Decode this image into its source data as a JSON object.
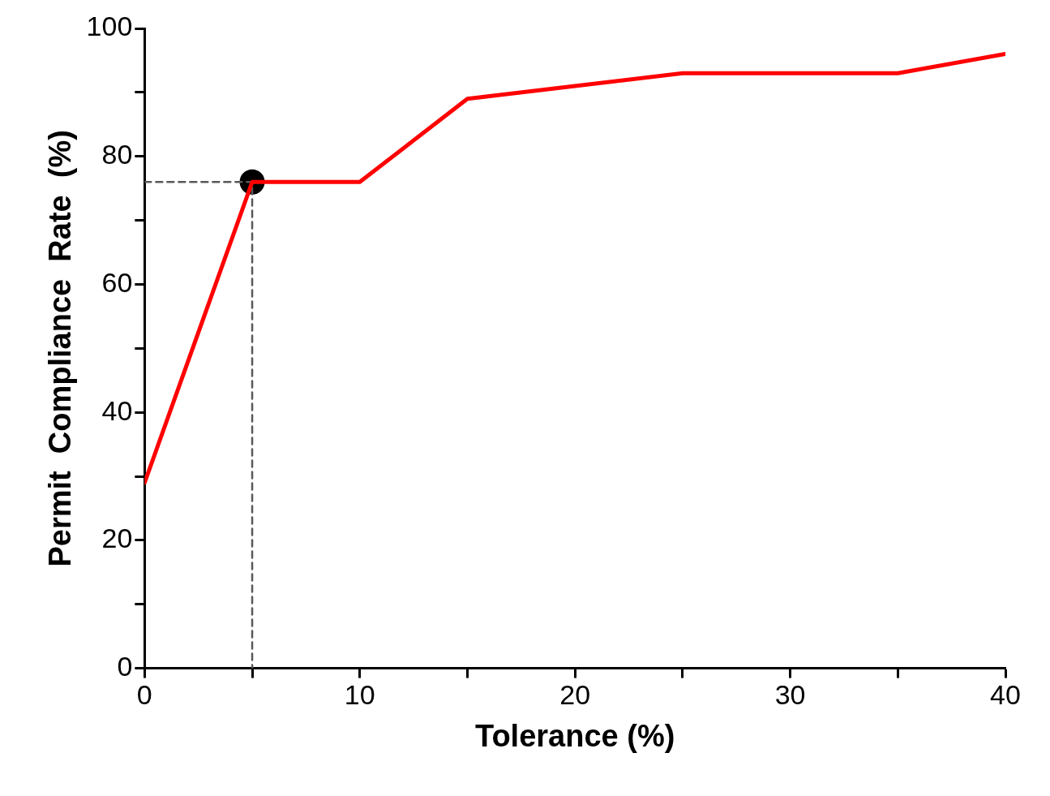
{
  "chart_data": {
    "type": "line",
    "xlabel": "Tolerance (%)",
    "ylabel": "Permit  Compliance  Rate  (%)",
    "xlim": [
      0,
      40
    ],
    "xticks": [
      0,
      {
        "value": 5,
        "label": null
      },
      10,
      {
        "value": 15,
        "label": null
      },
      20,
      {
        "value": 25,
        "label": null
      },
      30,
      {
        "value": 35,
        "label": null
      },
      40
    ],
    "ylim": [
      0,
      100
    ],
    "yticks": [
      0,
      {
        "value": 10,
        "label": null
      },
      20,
      {
        "value": 30,
        "label": null
      },
      40,
      {
        "value": 50,
        "label": null
      },
      60,
      {
        "value": 70,
        "label": null
      },
      80,
      {
        "value": 90,
        "label": null
      },
      100
    ],
    "grid": false,
    "legend": false,
    "series": [
      {
        "type": "line",
        "color": "#ff0000",
        "x": [
          0,
          5,
          10,
          15,
          20,
          25,
          30,
          35,
          40
        ],
        "values": [
          29,
          76,
          76,
          89,
          91,
          93,
          93,
          93,
          96
        ],
        "marker": "none",
        "line_style": "solid"
      },
      {
        "type": "line",
        "color": "#595959",
        "x": [
          0,
          5,
          5
        ],
        "values": [
          76,
          76,
          0
        ],
        "marker": "none",
        "line_style": "dashed"
      },
      {
        "type": "scatter",
        "color": "#000000",
        "x": [
          5
        ],
        "values": [
          76
        ],
        "marker": "circle"
      }
    ]
  }
}
